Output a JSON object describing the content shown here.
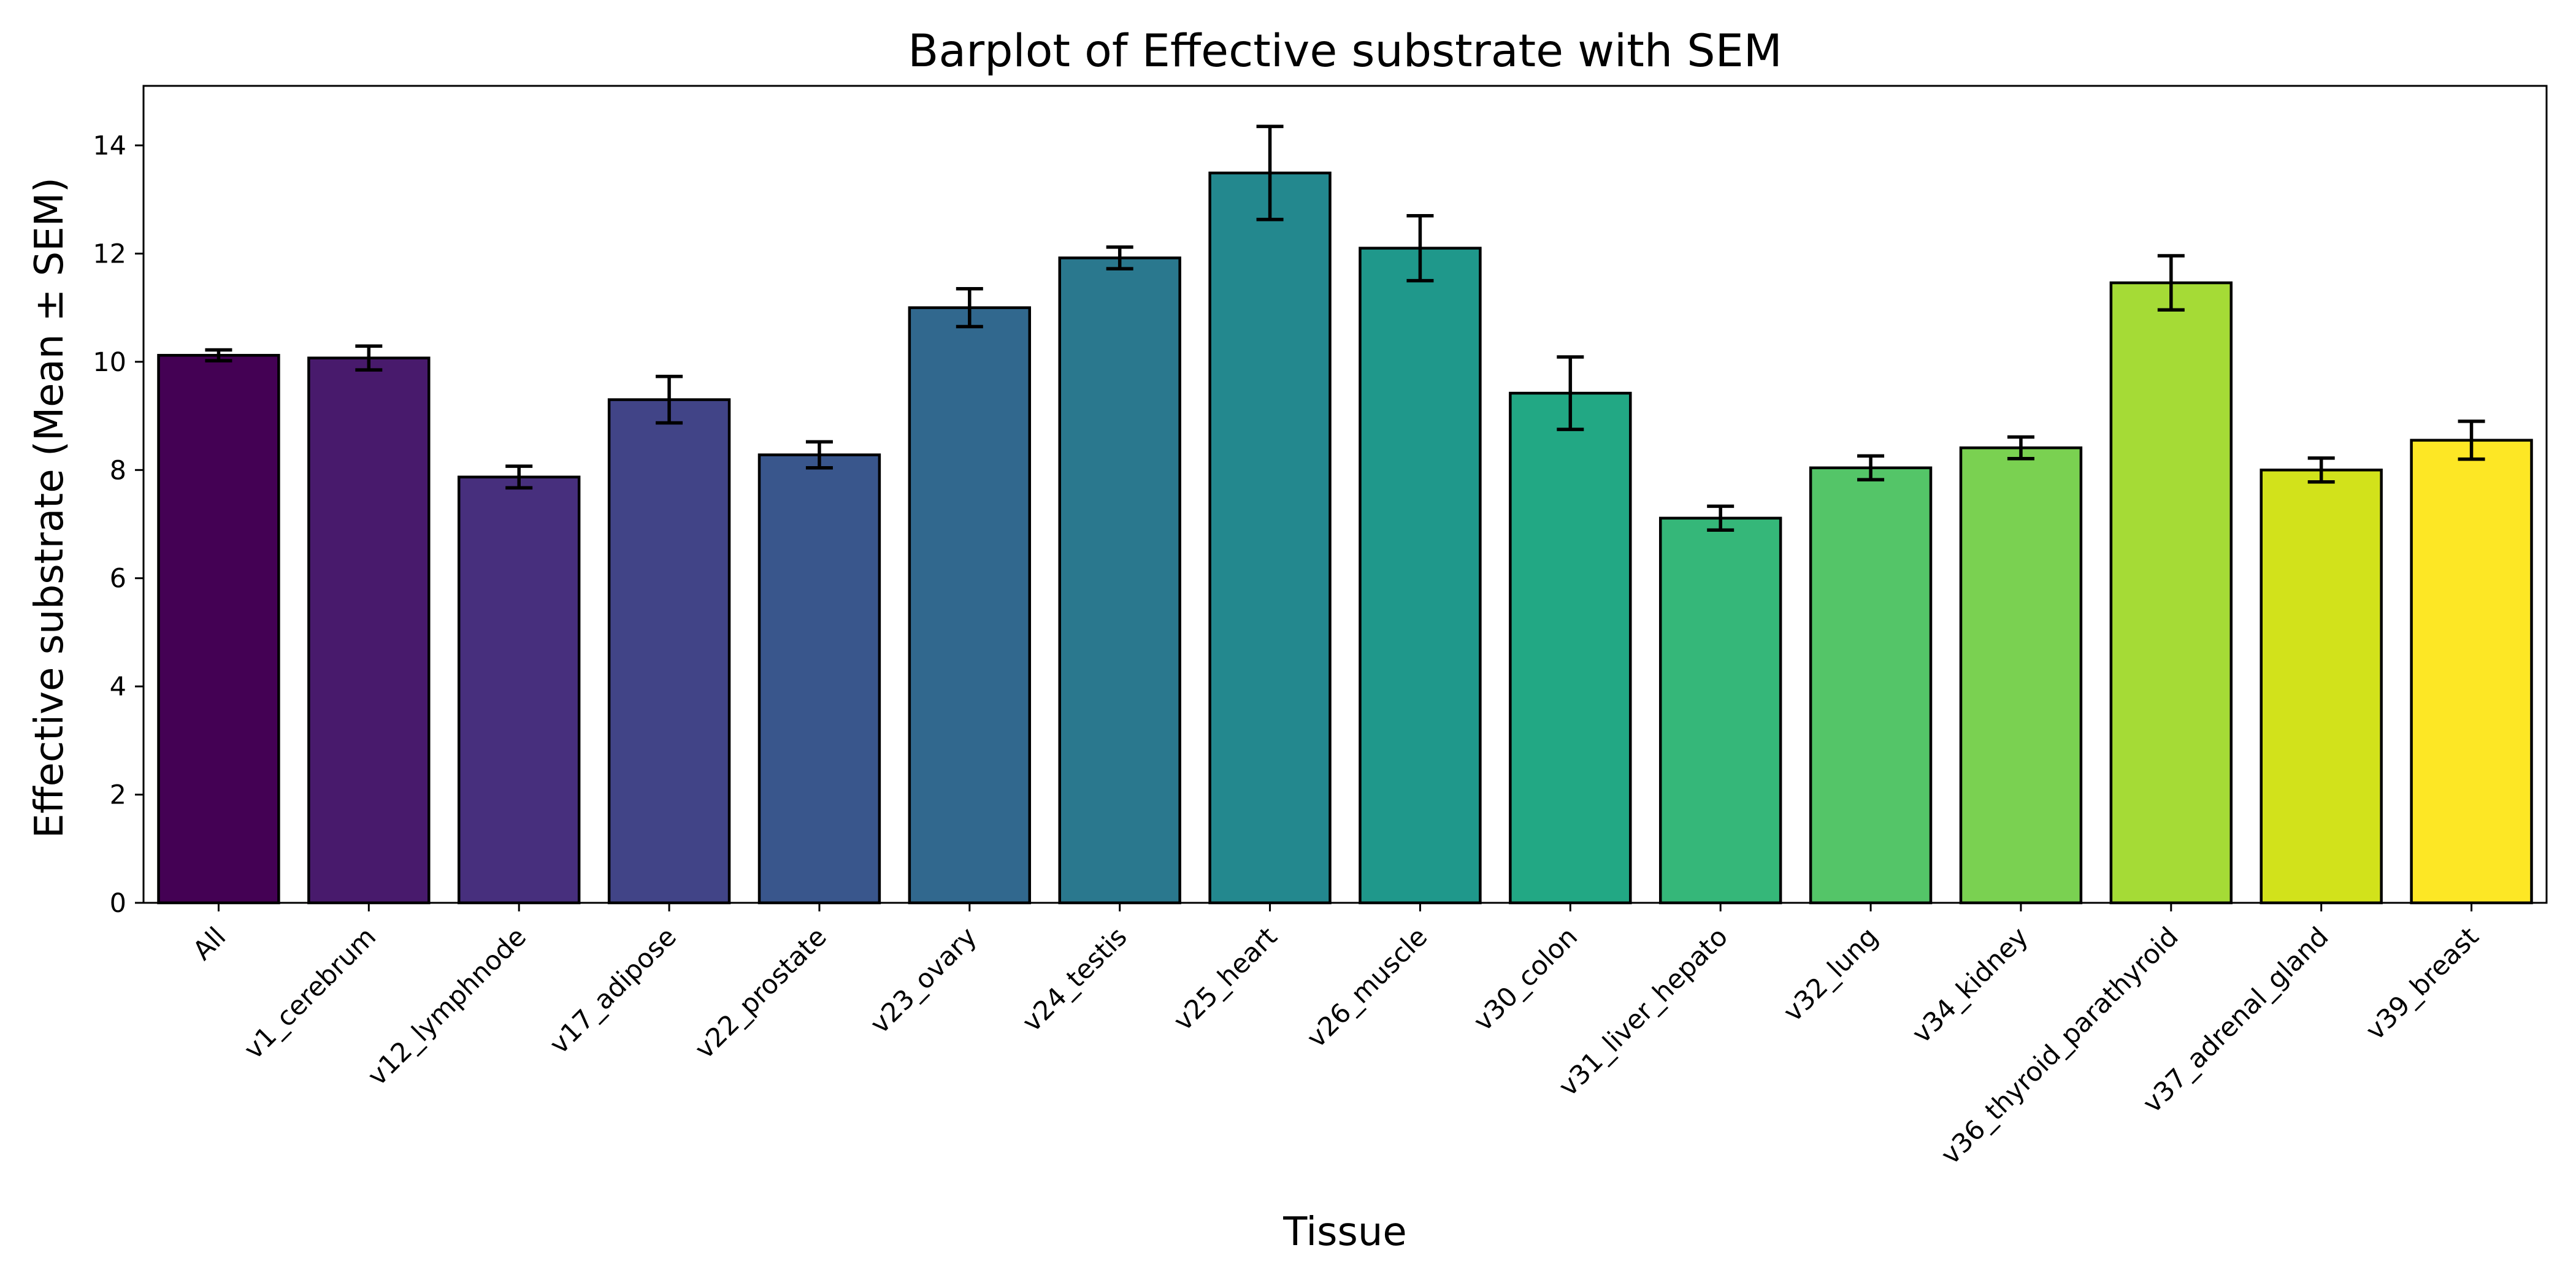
{
  "chart_data": {
    "type": "bar",
    "title": "Barplot of Effective substrate with SEM",
    "xlabel": "Tissue",
    "ylabel": "Effective substrate (Mean ± SEM)",
    "ylim": [
      0,
      15.1
    ],
    "yticks": [
      0,
      2,
      4,
      6,
      8,
      10,
      12,
      14
    ],
    "grid": false,
    "categories": [
      "All",
      "v1_cerebrum",
      "v12_lymphnode",
      "v17_adipose",
      "v22_prostate",
      "v23_ovary",
      "v24_testis",
      "v25_heart",
      "v26_muscle",
      "v30_colon",
      "v31_liver_hepato",
      "v32_lung",
      "v34_kidney",
      "v36_thyroid_parathyroid",
      "v37_adrenal_gland",
      "v39_breast"
    ],
    "values": [
      10.12,
      10.07,
      7.87,
      9.3,
      8.28,
      11.0,
      11.92,
      13.49,
      12.1,
      9.42,
      7.11,
      8.04,
      8.41,
      11.46,
      8.0,
      8.55
    ],
    "sem": [
      0.1,
      0.22,
      0.2,
      0.43,
      0.24,
      0.35,
      0.2,
      0.86,
      0.6,
      0.67,
      0.22,
      0.22,
      0.2,
      0.5,
      0.22,
      0.35
    ],
    "colors": [
      "#440154",
      "#481a6c",
      "#472f7d",
      "#414487",
      "#39568c",
      "#31688e",
      "#2a788e",
      "#23888e",
      "#1f988b",
      "#22a884",
      "#35b779",
      "#54c568",
      "#7ad151",
      "#a5db36",
      "#d2e21b",
      "#fde725"
    ]
  }
}
